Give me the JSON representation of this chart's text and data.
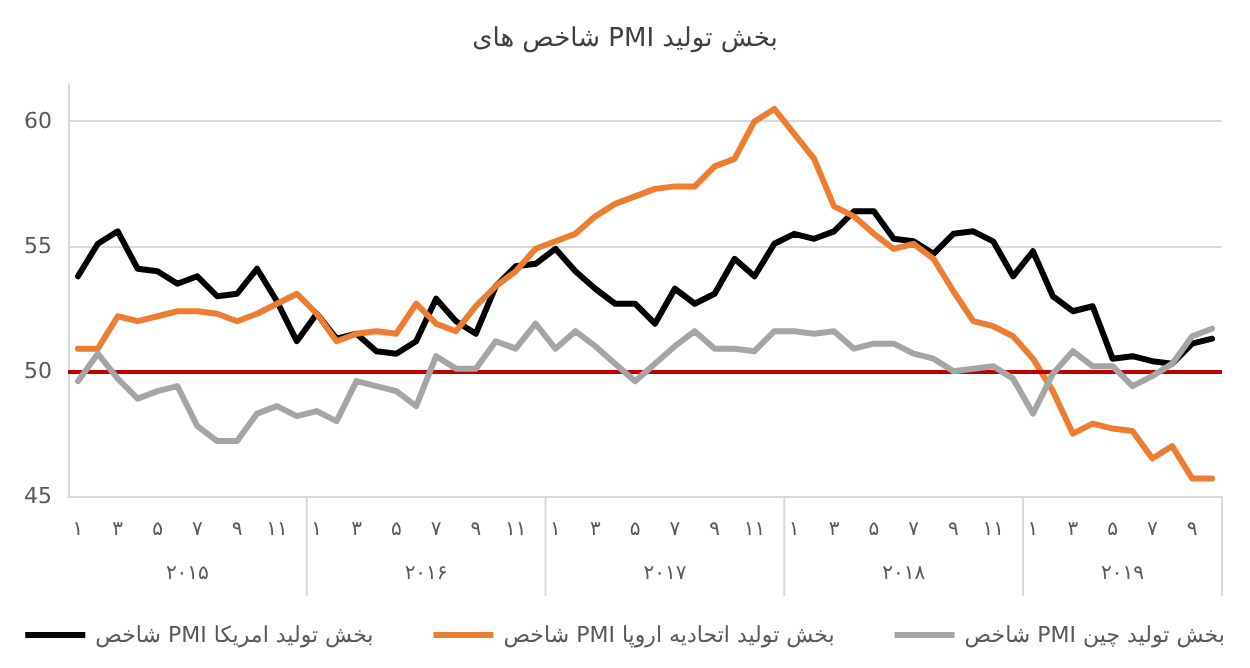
{
  "chart_data": {
    "type": "line",
    "title": "شاخص های PMI بخش تولید",
    "categories": [
      "۱",
      null,
      "۳",
      null,
      "۵",
      null,
      "۷",
      null,
      "۹",
      null,
      "۱۱",
      null,
      "۱",
      null,
      "۳",
      null,
      "۵",
      null,
      "۷",
      null,
      "۹",
      null,
      "۱۱",
      null,
      "۱",
      null,
      "۳",
      null,
      "۵",
      null,
      "۷",
      null,
      "۹",
      null,
      "۱۱",
      null,
      "۱",
      null,
      "۳",
      null,
      "۵",
      null,
      "۷",
      null,
      "۹",
      null,
      "۱۱",
      null,
      "۱",
      null,
      "۳",
      null,
      "۵",
      null,
      "۷",
      null,
      "۹",
      null
    ],
    "series": [
      {
        "name": "شاخص PMI بخش تولید امریکا",
        "color": "#000000",
        "values": [
          53.8,
          55.1,
          55.6,
          54.1,
          54.0,
          53.5,
          53.8,
          53.0,
          53.1,
          54.1,
          52.8,
          51.2,
          52.3,
          51.3,
          51.5,
          50.8,
          50.7,
          51.2,
          52.9,
          52.0,
          51.5,
          53.4,
          54.2,
          54.3,
          54.9,
          54.0,
          53.3,
          52.7,
          52.7,
          51.9,
          53.3,
          52.7,
          53.1,
          54.5,
          53.8,
          55.1,
          55.5,
          55.3,
          55.6,
          56.4,
          56.4,
          55.3,
          55.2,
          54.7,
          55.5,
          55.6,
          55.2,
          53.8,
          54.8,
          53.0,
          52.4,
          52.6,
          50.5,
          50.6,
          50.4,
          50.3,
          51.1,
          51.3
        ]
      },
      {
        "name": "شاخص PMI بخش تولید اتحادیه اروپا",
        "color": "#ed7d31",
        "values": [
          50.9,
          50.9,
          52.2,
          52.0,
          52.2,
          52.4,
          52.4,
          52.3,
          52.0,
          52.3,
          52.7,
          53.1,
          52.3,
          51.2,
          51.5,
          51.6,
          51.5,
          52.7,
          51.9,
          51.6,
          52.6,
          53.4,
          54.0,
          54.9,
          55.2,
          55.5,
          56.2,
          56.7,
          57.0,
          57.3,
          57.4,
          57.4,
          58.2,
          58.5,
          60.0,
          60.5,
          59.5,
          58.5,
          56.6,
          56.2,
          55.5,
          54.9,
          55.1,
          54.5,
          53.2,
          52.0,
          51.8,
          51.4,
          50.5,
          49.2,
          47.5,
          47.9,
          47.7,
          47.6,
          46.5,
          47.0,
          45.7,
          45.7
        ]
      },
      {
        "name": "شاخص PMI بخش تولید چین",
        "color": "#a5a5a5",
        "values": [
          49.6,
          50.7,
          49.7,
          48.9,
          49.2,
          49.4,
          47.8,
          47.2,
          47.2,
          48.3,
          48.6,
          48.2,
          48.4,
          48.0,
          49.6,
          49.4,
          49.2,
          48.6,
          50.6,
          50.1,
          50.1,
          51.2,
          50.9,
          51.9,
          50.9,
          51.6,
          51.0,
          50.3,
          49.6,
          50.3,
          51.0,
          51.6,
          50.9,
          50.9,
          50.8,
          51.6,
          51.6,
          51.5,
          51.6,
          50.9,
          51.1,
          51.1,
          50.7,
          50.5,
          50.0,
          50.1,
          50.2,
          49.7,
          48.3,
          49.9,
          50.8,
          50.2,
          50.2,
          49.4,
          49.8,
          50.3,
          51.4,
          51.7
        ]
      }
    ],
    "annotations": [
      "۲۰۱۵",
      "۲۰۱۶",
      "۲۰۱۷",
      "۲۰۱۸",
      "۲۰۱۹"
    ],
    "ylim": [
      45,
      61.5
    ],
    "yticks": [
      45,
      50,
      55,
      60
    ],
    "grid": "y",
    "legend": "bottom",
    "marker": "none",
    "line_style": "solid",
    "ref_lines": [
      {
        "axis": "y",
        "value": 50,
        "color": "#c00000"
      }
    ]
  }
}
